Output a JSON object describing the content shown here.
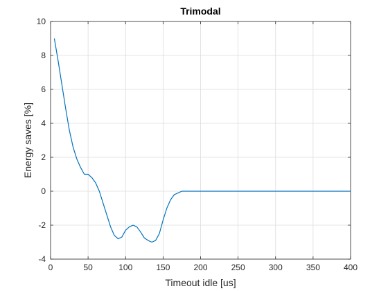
{
  "chart_data": {
    "type": "line",
    "title": "Trimodal",
    "xlabel": "Timeout idle [us]",
    "ylabel": "Energy saves [%]",
    "xlim": [
      0,
      400
    ],
    "ylim": [
      -4,
      10
    ],
    "xticks": [
      0,
      50,
      100,
      150,
      200,
      250,
      300,
      350,
      400
    ],
    "yticks": [
      -4,
      -2,
      0,
      2,
      4,
      6,
      8,
      10
    ],
    "xtick_labels": [
      "0",
      "50",
      "100",
      "150",
      "200",
      "250",
      "300",
      "350",
      "400"
    ],
    "ytick_labels": [
      "-4",
      "-2",
      "0",
      "2",
      "4",
      "6",
      "8",
      "10"
    ],
    "grid": true,
    "series": [
      {
        "color": "#0072BD",
        "x": [
          5,
          10,
          15,
          20,
          25,
          30,
          35,
          40,
          45,
          50,
          55,
          60,
          65,
          70,
          75,
          80,
          85,
          90,
          95,
          100,
          105,
          110,
          115,
          120,
          125,
          130,
          135,
          140,
          145,
          150,
          155,
          160,
          165,
          170,
          175,
          180,
          200,
          250,
          300,
          350,
          400
        ],
        "y": [
          9.0,
          7.7,
          6.3,
          4.9,
          3.6,
          2.6,
          1.9,
          1.4,
          1.0,
          1.0,
          0.8,
          0.5,
          0.0,
          -0.7,
          -1.4,
          -2.1,
          -2.6,
          -2.8,
          -2.7,
          -2.3,
          -2.1,
          -2.0,
          -2.1,
          -2.4,
          -2.75,
          -2.9,
          -3.0,
          -2.9,
          -2.5,
          -1.7,
          -1.0,
          -0.5,
          -0.2,
          -0.1,
          0.0,
          0.0,
          0.0,
          0.0,
          0.0,
          0.0,
          0.0
        ]
      }
    ]
  }
}
